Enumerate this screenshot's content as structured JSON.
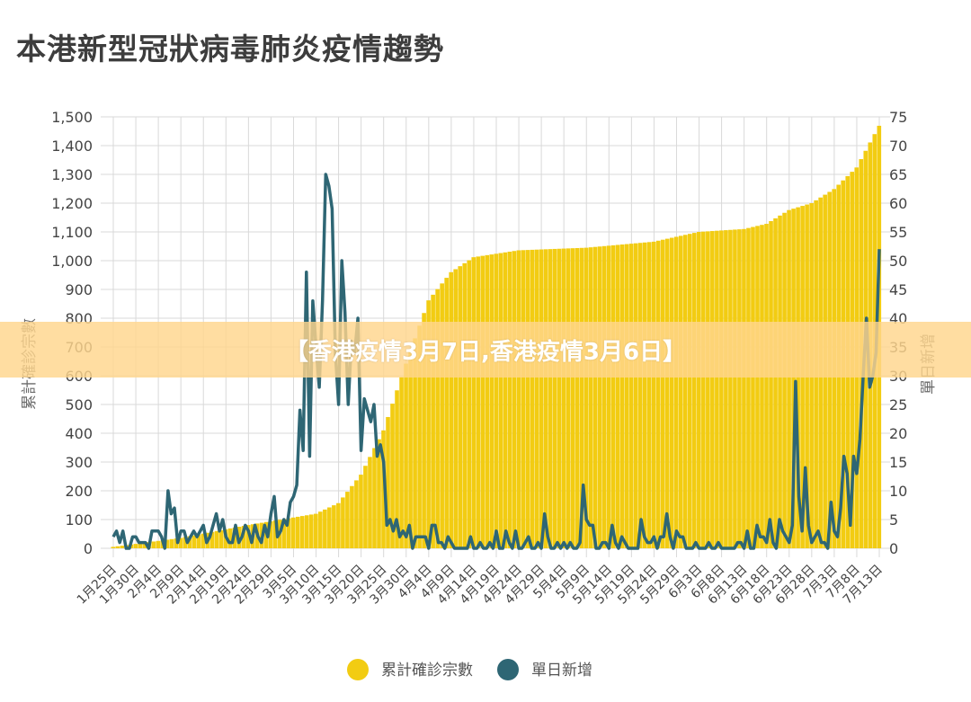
{
  "title": "本港新型冠狀病毒肺炎疫情趨勢",
  "banner": "【香港疫情3月7日,香港疫情3月6日】",
  "colors": {
    "cumulative": "#f2cc12",
    "daily": "#2e6674",
    "grid": "#d9d9d9"
  },
  "chart_data": {
    "type": "bar+line",
    "ylabel_left": "累計確診宗數",
    "ylabel_right": "單日新增",
    "left_ticks": [
      "0",
      "100",
      "200",
      "300",
      "400",
      "500",
      "600",
      "700",
      "800",
      "900",
      "1,000",
      "1,100",
      "1,200",
      "1,300",
      "1,400",
      "1,500"
    ],
    "right_ticks": [
      "0",
      "5",
      "10",
      "15",
      "20",
      "25",
      "30",
      "35",
      "40",
      "45",
      "50",
      "55",
      "60",
      "65",
      "70",
      "75"
    ],
    "ylim_left": [
      0,
      1500
    ],
    "ylim_right": [
      0,
      75
    ],
    "x_tick_labels": [
      "1月25日",
      "1月30日",
      "2月4日",
      "2月9日",
      "2月14日",
      "2月19日",
      "2月24日",
      "2月29日",
      "3月5日",
      "3月10日",
      "3月15日",
      "3月20日",
      "3月25日",
      "3月30日",
      "4月4日",
      "4月9日",
      "4月14日",
      "4月19日",
      "4月24日",
      "4月29日",
      "5月4日",
      "5月9日",
      "5月14日",
      "5月19日",
      "5月24日",
      "5月29日",
      "6月3日",
      "6月8日",
      "6月13日",
      "6月18日",
      "6月23日",
      "6月28日",
      "7月3日",
      "7月8日",
      "7月13日"
    ],
    "legend": [
      {
        "label": "累計確診宗數",
        "series": "cumulative"
      },
      {
        "label": "單日新增",
        "series": "daily"
      }
    ],
    "cumulative_keypoints": [
      {
        "date": "1月25日",
        "value": 5
      },
      {
        "date": "2月9日",
        "value": 36
      },
      {
        "date": "2月24日",
        "value": 81
      },
      {
        "date": "3月10日",
        "value": 120
      },
      {
        "date": "3月15日",
        "value": 157
      },
      {
        "date": "3月20日",
        "value": 256
      },
      {
        "date": "3月25日",
        "value": 410
      },
      {
        "date": "3月30日",
        "value": 642
      },
      {
        "date": "4月4日",
        "value": 862
      },
      {
        "date": "4月9日",
        "value": 960
      },
      {
        "date": "4月14日",
        "value": 1012
      },
      {
        "date": "4月24日",
        "value": 1036
      },
      {
        "date": "5月9日",
        "value": 1045
      },
      {
        "date": "5月24日",
        "value": 1066
      },
      {
        "date": "6月3日",
        "value": 1100
      },
      {
        "date": "6月13日",
        "value": 1110
      },
      {
        "date": "6月18日",
        "value": 1128
      },
      {
        "date": "6月23日",
        "value": 1176
      },
      {
        "date": "6月28日",
        "value": 1200
      },
      {
        "date": "7月3日",
        "value": 1249
      },
      {
        "date": "7月8日",
        "value": 1324
      },
      {
        "date": "7月13日",
        "value": 1469
      }
    ],
    "daily": [
      2,
      3,
      1,
      3,
      0,
      0,
      2,
      2,
      1,
      1,
      1,
      0,
      3,
      3,
      3,
      2,
      0,
      10,
      6,
      7,
      1,
      3,
      3,
      1,
      2,
      3,
      2,
      3,
      4,
      1,
      2,
      4,
      6,
      3,
      5,
      2,
      1,
      1,
      4,
      1,
      2,
      4,
      3,
      1,
      4,
      2,
      1,
      4,
      2,
      6,
      9,
      2,
      3,
      5,
      4,
      8,
      9,
      11,
      24,
      17,
      48,
      16,
      43,
      35,
      28,
      43,
      65,
      63,
      59,
      34,
      25,
      50,
      41,
      25,
      36,
      34,
      40,
      17,
      26,
      24,
      22,
      25,
      16,
      18,
      15,
      4,
      5,
      3,
      5,
      2,
      3,
      2,
      4,
      0,
      2,
      2,
      2,
      2,
      0,
      4,
      4,
      1,
      1,
      0,
      2,
      1,
      0,
      0,
      0,
      0,
      0,
      2,
      0,
      0,
      1,
      0,
      0,
      1,
      0,
      3,
      0,
      0,
      3,
      1,
      0,
      3,
      0,
      0,
      1,
      2,
      0,
      0,
      1,
      0,
      6,
      2,
      0,
      0,
      1,
      0,
      1,
      0,
      1,
      0,
      0,
      1,
      11,
      5,
      4,
      4,
      0,
      0,
      1,
      1,
      0,
      4,
      1,
      0,
      2,
      1,
      0,
      0,
      0,
      0,
      5,
      2,
      1,
      1,
      2,
      0,
      2,
      2,
      6,
      2,
      0,
      3,
      2,
      2,
      0,
      0,
      0,
      1,
      0,
      0,
      0,
      1,
      0,
      0,
      1,
      0,
      0,
      0,
      0,
      0,
      1,
      1,
      0,
      3,
      0,
      0,
      4,
      2,
      2,
      1,
      5,
      1,
      0,
      5,
      3,
      2,
      1,
      4,
      29,
      9,
      3,
      14,
      4,
      1,
      2,
      3,
      1,
      1,
      0,
      8,
      3,
      2,
      7,
      16,
      13,
      4,
      16,
      13,
      19,
      30,
      40,
      28,
      30,
      34,
      52
    ]
  }
}
